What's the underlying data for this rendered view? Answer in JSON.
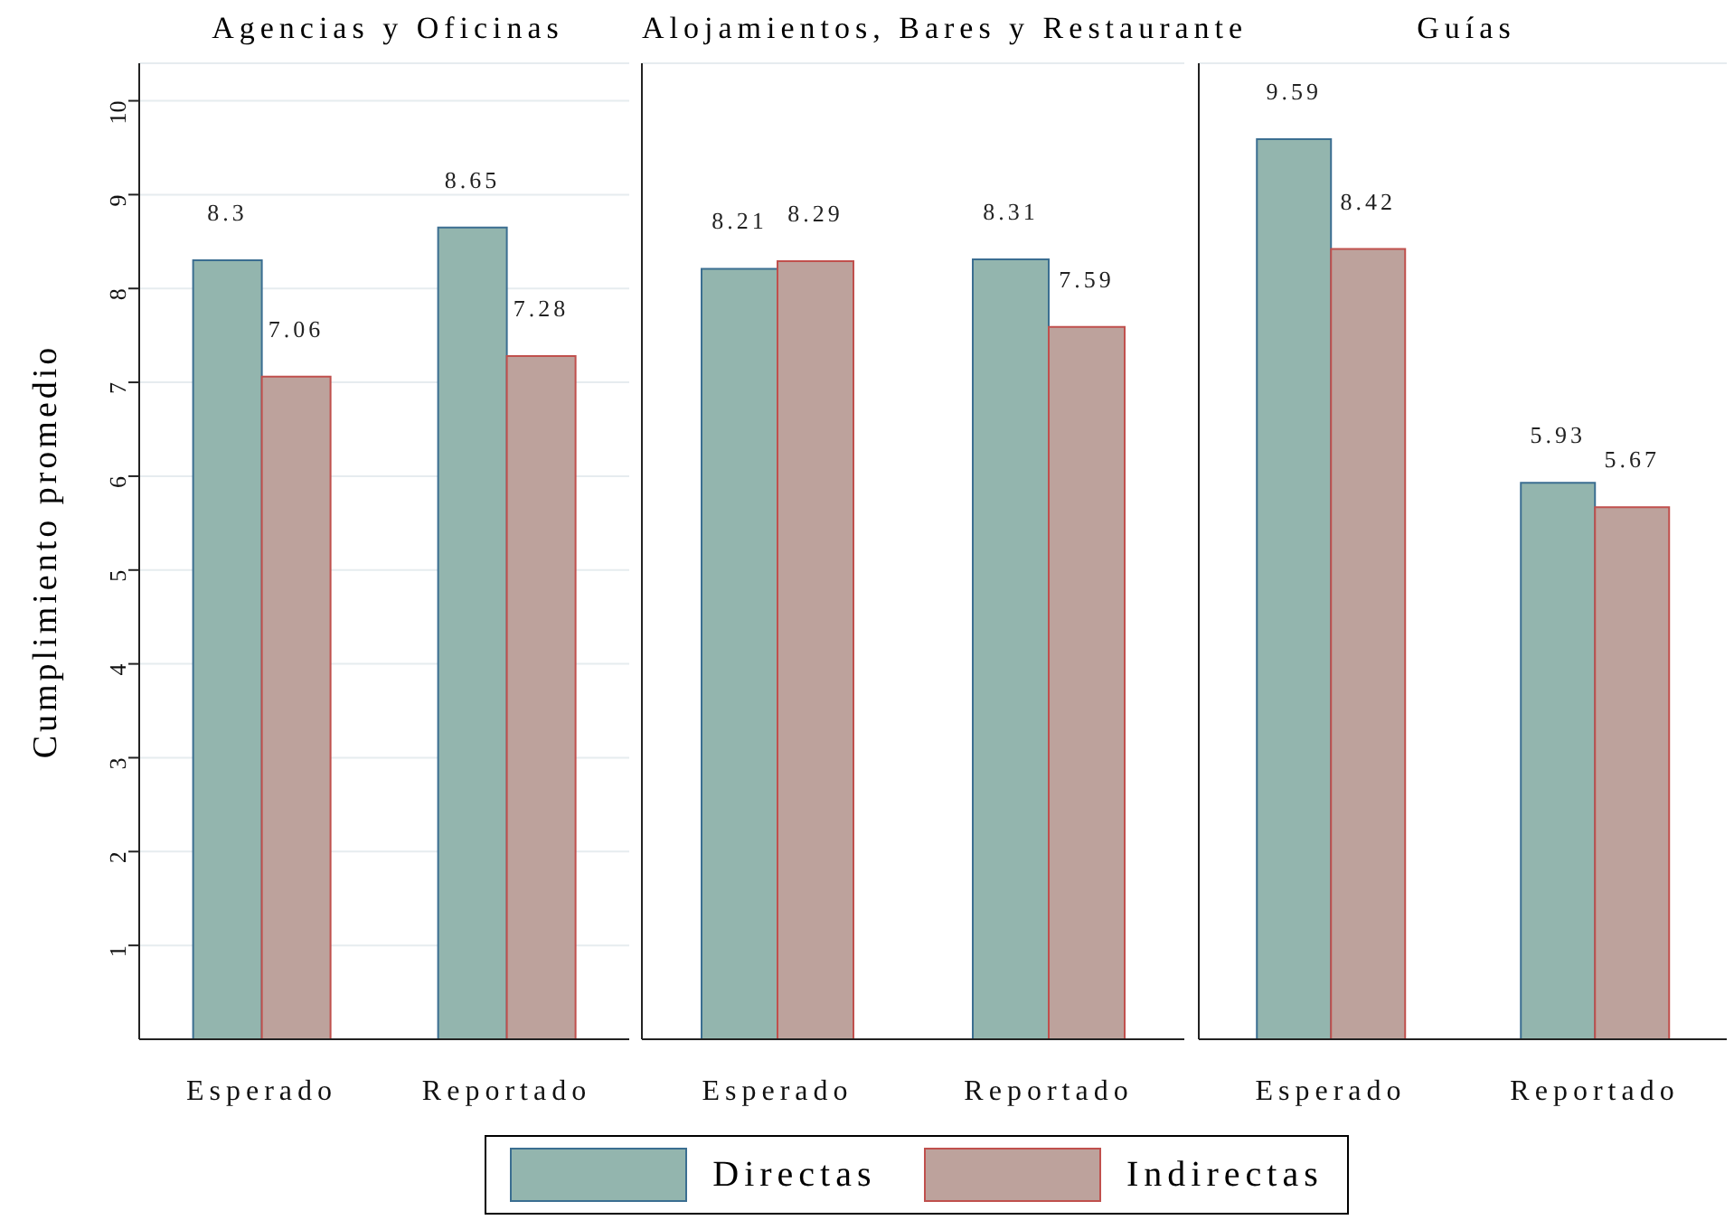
{
  "chart_data": [
    {
      "type": "bar",
      "title": "Agencias y Oficinas",
      "ylabel": "Cumplimiento promedio",
      "categories": [
        "Esperado",
        "Reportado"
      ],
      "series": [
        {
          "name": "Directas",
          "color": "#93b5ae",
          "values": [
            8.3,
            8.65
          ]
        },
        {
          "name": "Indirectas",
          "color": "#bda29c",
          "values": [
            7.06,
            7.28
          ]
        }
      ],
      "ylim": [
        0,
        10.4
      ],
      "yticks": [
        1,
        2,
        3,
        4,
        5,
        6,
        7,
        8,
        9,
        10
      ],
      "grid": "y",
      "data_labels": true,
      "legend": "bottom"
    },
    {
      "type": "bar",
      "title": "Alojamientos, Bares y Restaurante",
      "categories": [
        "Esperado",
        "Reportado"
      ],
      "series": [
        {
          "color": "#93b5ae",
          "values": [
            8.21,
            8.31
          ]
        },
        {
          "color": "#bda29c",
          "values": [
            8.29,
            7.59
          ]
        }
      ],
      "ylim": [
        0,
        10.4
      ],
      "yticks": [
        1,
        2,
        3,
        4,
        5,
        6,
        7,
        8,
        9,
        10
      ],
      "grid": "y",
      "data_labels": true,
      "tick_labels": "x"
    },
    {
      "type": "bar",
      "title": "Guías",
      "categories": [
        "Esperado",
        "Reportado"
      ],
      "series": [
        {
          "color": "#93b5ae",
          "values": [
            9.59,
            5.93
          ]
        },
        {
          "color": "#bda29c",
          "values": [
            8.42,
            5.67
          ]
        }
      ],
      "ylim": [
        0,
        10.4
      ],
      "yticks": [
        1,
        2,
        3,
        4,
        5,
        6,
        7,
        8,
        9,
        10
      ],
      "grid": "y",
      "data_labels": true,
      "tick_labels": "x"
    }
  ]
}
